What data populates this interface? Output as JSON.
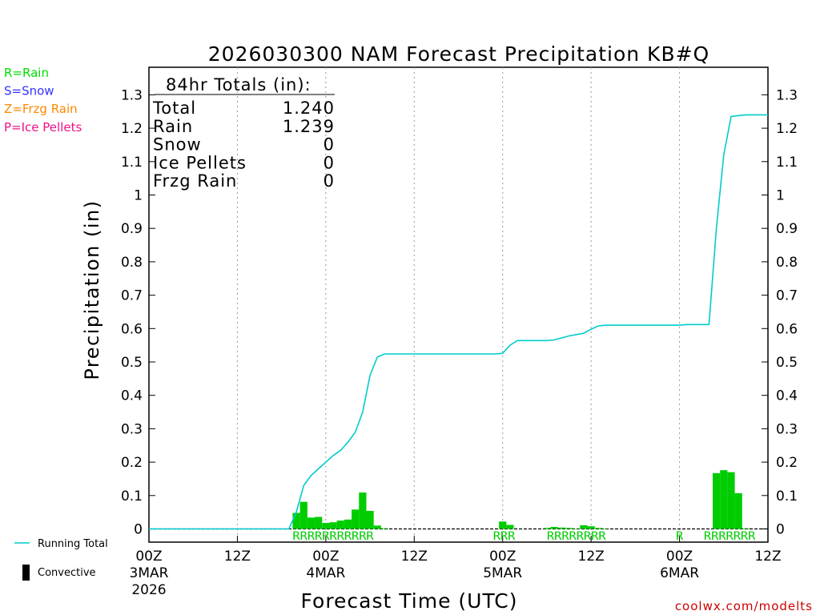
{
  "chart_data": {
    "type": "bar",
    "title": "2026030300 NAM Forecast Precipitation KB#Q",
    "xlabel": "Forecast Time (UTC)",
    "ylabel": "Precipitation (in)",
    "xlim": [
      0,
      84
    ],
    "ylim": [
      0,
      1.35
    ],
    "y_ticks": [
      0,
      0.1,
      0.2,
      0.3,
      0.4,
      0.5,
      0.6,
      0.7,
      0.8,
      0.9,
      1,
      1.1,
      1.2,
      1.3
    ],
    "x_ticks": [
      {
        "h": 0,
        "lines": [
          "00Z",
          "3MAR",
          "2026"
        ]
      },
      {
        "h": 12,
        "lines": [
          "12Z"
        ]
      },
      {
        "h": 24,
        "lines": [
          "00Z",
          "4MAR"
        ]
      },
      {
        "h": 36,
        "lines": [
          "12Z"
        ]
      },
      {
        "h": 48,
        "lines": [
          "00Z",
          "5MAR"
        ]
      },
      {
        "h": 60,
        "lines": [
          "12Z"
        ]
      },
      {
        "h": 72,
        "lines": [
          "00Z",
          "6MAR"
        ]
      },
      {
        "h": 84,
        "lines": [
          "12Z"
        ]
      }
    ],
    "grid": "vertical-dotted",
    "series": [
      {
        "name": "Running Total",
        "kind": "line",
        "color": "#00cccc",
        "x": [
          0,
          19,
          20,
          21,
          22,
          23,
          24,
          25,
          26,
          27,
          28,
          29,
          30,
          31,
          32,
          33,
          34,
          35,
          36,
          37,
          38,
          39,
          40,
          41,
          42,
          43,
          44,
          45,
          46,
          47,
          48,
          49,
          50,
          51,
          52,
          53,
          54,
          55,
          56,
          57,
          58,
          59,
          60,
          61,
          62,
          63,
          64,
          65,
          66,
          67,
          68,
          69,
          70,
          71,
          72,
          73,
          74,
          75,
          76,
          77,
          78,
          79,
          80,
          81,
          82,
          83,
          84
        ],
        "y": [
          0,
          0,
          0.05,
          0.13,
          0.16,
          0.18,
          0.2,
          0.22,
          0.235,
          0.26,
          0.29,
          0.35,
          0.46,
          0.515,
          0.524,
          0.524,
          0.524,
          0.524,
          0.524,
          0.524,
          0.524,
          0.524,
          0.524,
          0.524,
          0.524,
          0.524,
          0.524,
          0.524,
          0.524,
          0.524,
          0.526,
          0.55,
          0.564,
          0.564,
          0.564,
          0.564,
          0.564,
          0.566,
          0.572,
          0.578,
          0.582,
          0.586,
          0.598,
          0.608,
          0.61,
          0.61,
          0.61,
          0.61,
          0.61,
          0.61,
          0.61,
          0.61,
          0.61,
          0.61,
          0.61,
          0.612,
          0.612,
          0.612,
          0.612,
          0.9,
          1.12,
          1.235,
          1.238,
          1.24,
          1.24,
          1.24,
          1.24
        ]
      },
      {
        "name": "Rain",
        "kind": "bar",
        "color": "#00cc00",
        "x": [
          20,
          21,
          22,
          23,
          24,
          25,
          26,
          27,
          28,
          29,
          30,
          31,
          32,
          48,
          49,
          54,
          55,
          56,
          57,
          58,
          59,
          60,
          61,
          62,
          77,
          78,
          79,
          80,
          81
        ],
        "y": [
          0.048,
          0.081,
          0.034,
          0.036,
          0.018,
          0.02,
          0.025,
          0.028,
          0.058,
          0.109,
          0.054,
          0.01,
          0.002,
          0.022,
          0.012,
          0.003,
          0.006,
          0.004,
          0.003,
          0.001,
          0.011,
          0.008,
          0.003,
          0.001,
          0.167,
          0.176,
          0.17,
          0.107,
          0.002
        ]
      }
    ],
    "ptype_markers": {
      "color": "#00cc00",
      "rows": [
        {
          "start": 20,
          "text": "RRRRRRRRRRR"
        },
        {
          "start": 47.2,
          "text": "RRR"
        },
        {
          "start": 54.5,
          "text": "RRRRRRRR"
        },
        {
          "start": 72,
          "text": "R"
        },
        {
          "start": 75.8,
          "text": "RRRRRRR"
        }
      ]
    },
    "totals_box": {
      "header": "84hr Totals (in):",
      "rows": [
        {
          "label": "Total",
          "value": "1.240"
        },
        {
          "label": "Rain",
          "value": "1.239"
        },
        {
          "label": "Snow",
          "value": "0"
        },
        {
          "label": "Ice Pellets",
          "value": "0"
        },
        {
          "label": "Frzg Rain",
          "value": "0"
        }
      ]
    },
    "ptype_legend": [
      {
        "text": "R=Rain",
        "color": "#00dd00"
      },
      {
        "text": "S=Snow",
        "color": "#3333ff"
      },
      {
        "text": "Z=Frzg Rain",
        "color": "#ff8800"
      },
      {
        "text": "P=Ice Pellets",
        "color": "#ee1188"
      }
    ],
    "legend": [
      {
        "text": "Running Total",
        "symbol": "line",
        "color": "#00cccc"
      },
      {
        "text": "Convective",
        "symbol": "bar",
        "color": "#000000"
      }
    ],
    "credit": "coolwx.com/modelts",
    "credit_color": "#cc0000"
  }
}
